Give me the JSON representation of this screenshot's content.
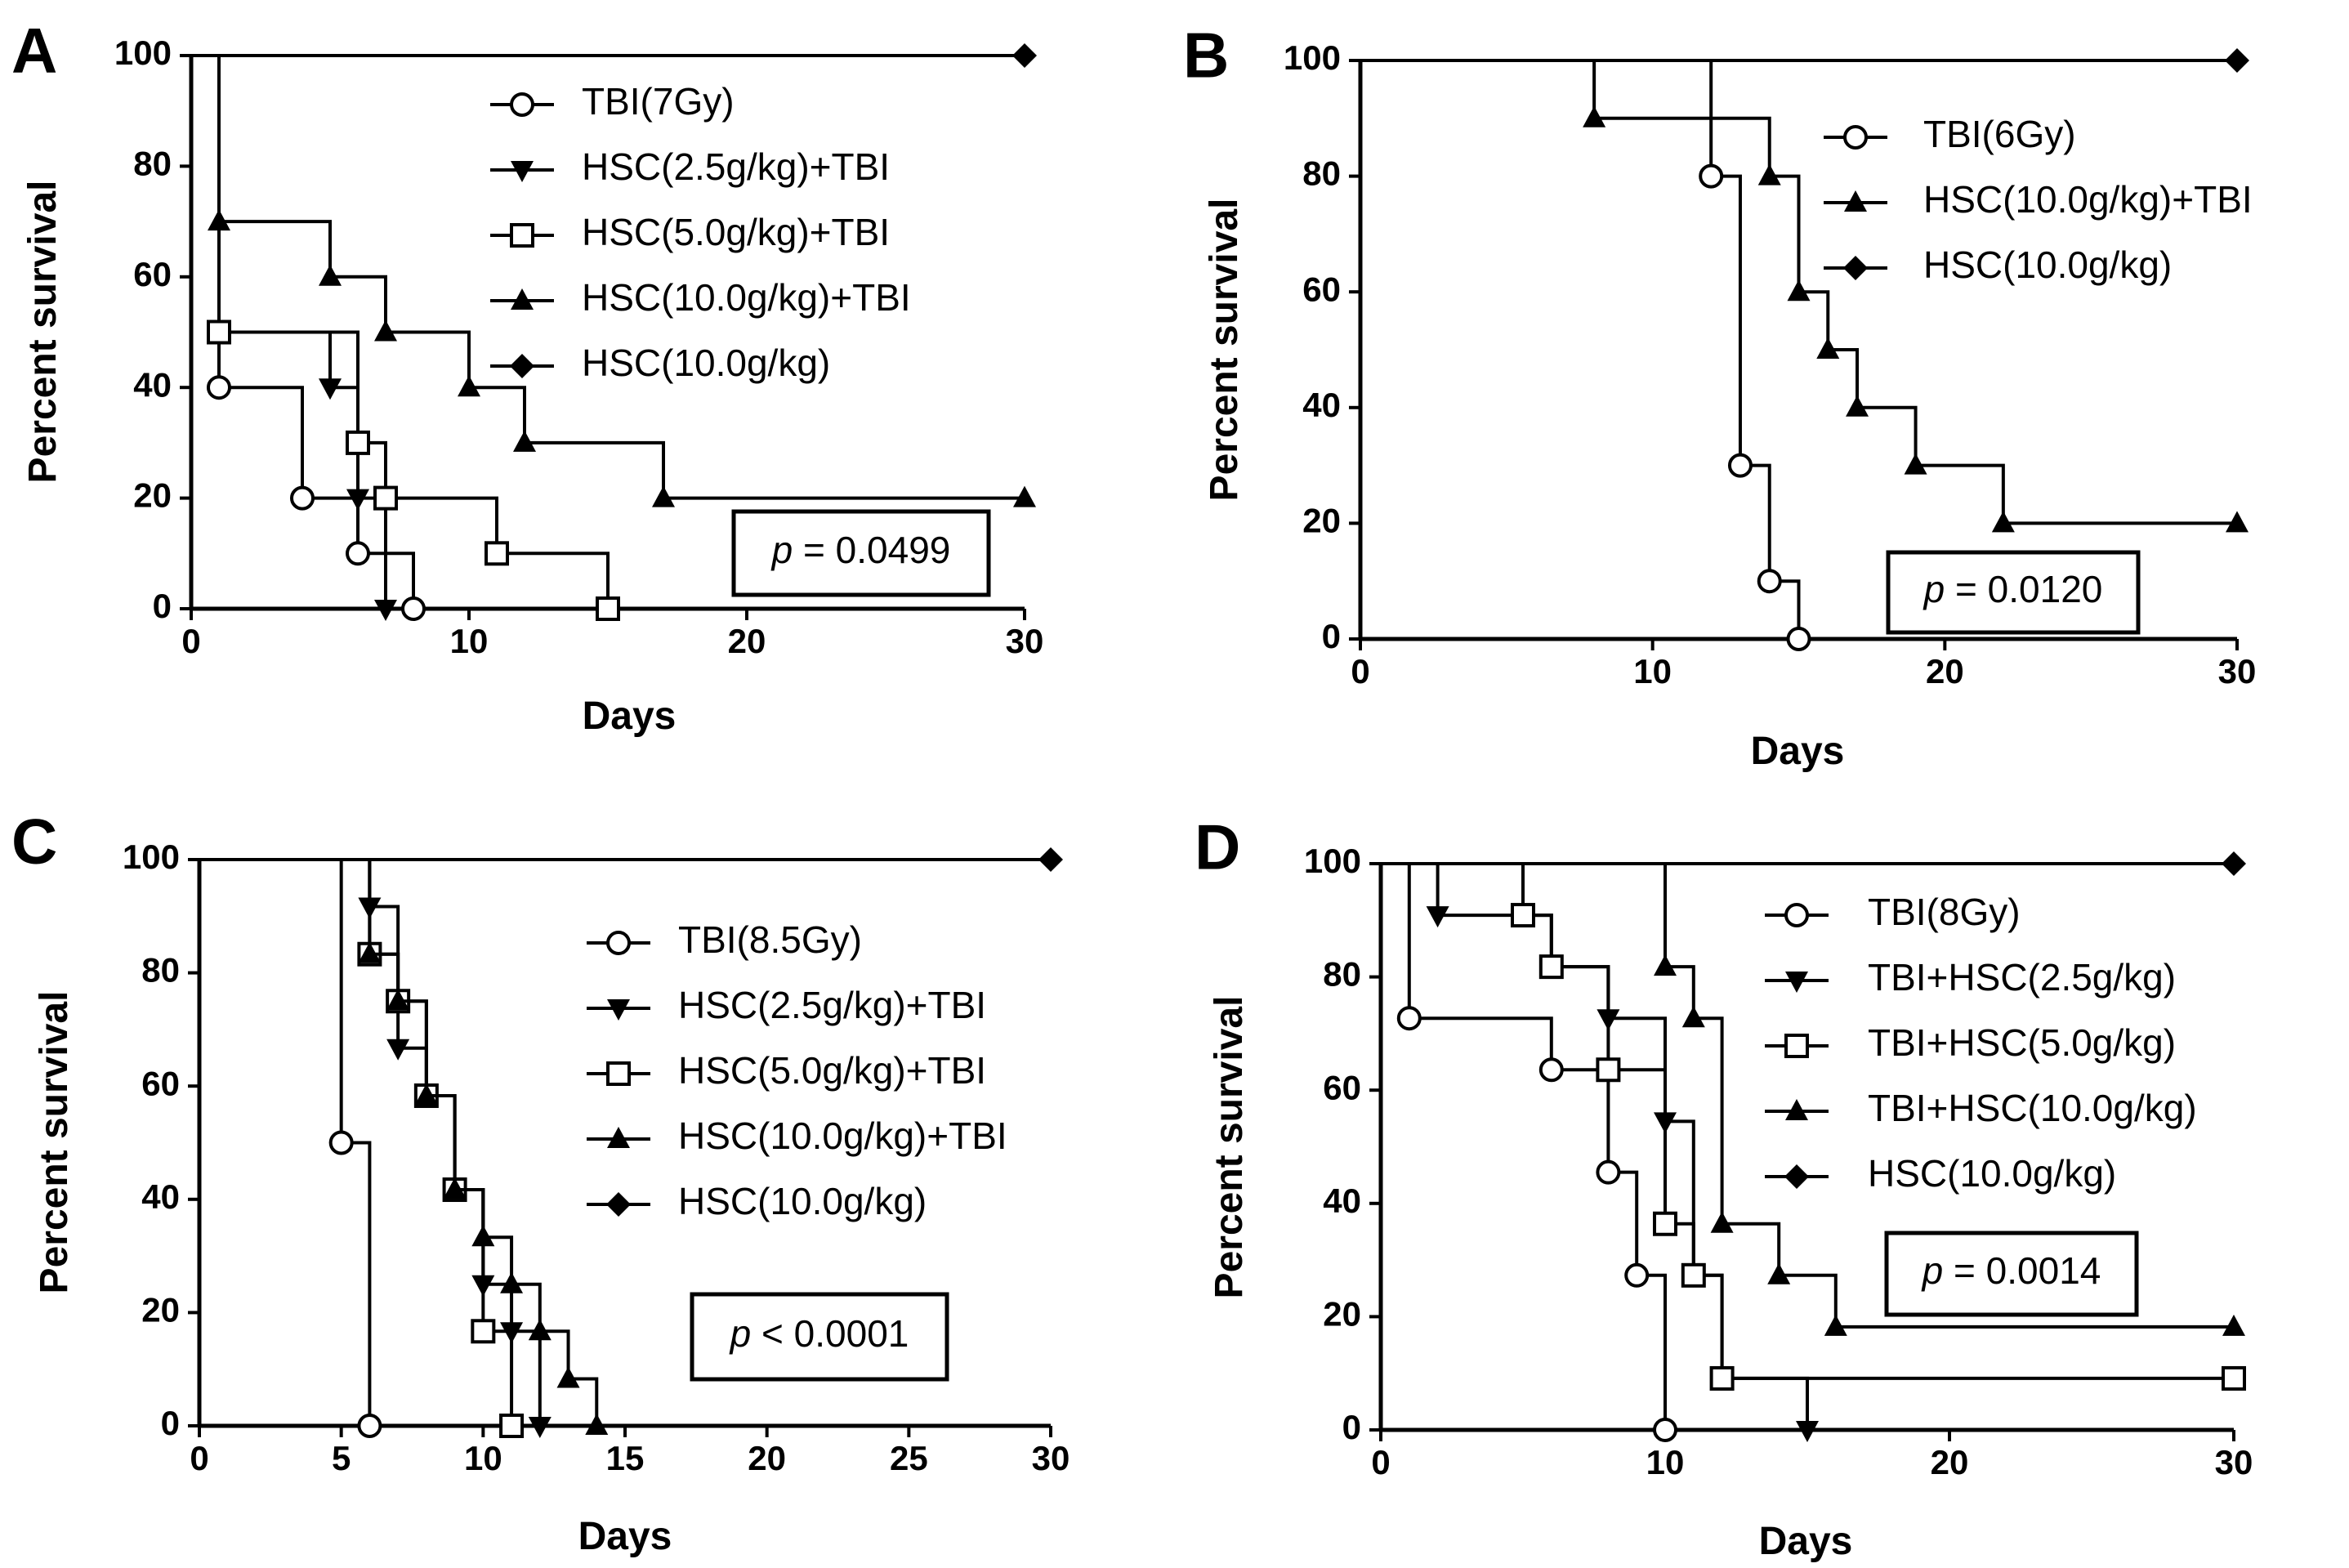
{
  "chart_data": [
    {
      "panel": "A",
      "type": "line",
      "subtype": "kaplan-meier",
      "xlabel": "Days",
      "ylabel": "Percent survival",
      "xlim": [
        0,
        30
      ],
      "ylim": [
        0,
        100
      ],
      "xticks": [
        0,
        10,
        20,
        30
      ],
      "yticks": [
        0,
        20,
        40,
        60,
        80,
        100
      ],
      "legend_position": "top-center",
      "p_value": {
        "prefix": "p",
        "text": " = 0.0499"
      },
      "series": [
        {
          "name": "TBI(7Gy)",
          "marker": "circle-open",
          "steps": [
            [
              0,
              100
            ],
            [
              1,
              40
            ],
            [
              4,
              20
            ],
            [
              6,
              10
            ],
            [
              8,
              0
            ]
          ]
        },
        {
          "name": "HSC(2.5g/kg)+TBI",
          "marker": "triangle-down",
          "steps": [
            [
              0,
              100
            ],
            [
              1,
              50
            ],
            [
              5,
              40
            ],
            [
              6,
              20
            ],
            [
              7,
              0
            ]
          ]
        },
        {
          "name": "HSC(5.0g/kg)+TBI",
          "marker": "square-open",
          "steps": [
            [
              0,
              100
            ],
            [
              1,
              50
            ],
            [
              6,
              30
            ],
            [
              7,
              20
            ],
            [
              11,
              10
            ],
            [
              15,
              0
            ]
          ]
        },
        {
          "name": "HSC(10.0g/kg)+TBI",
          "marker": "triangle-up",
          "steps": [
            [
              0,
              100
            ],
            [
              1,
              70
            ],
            [
              5,
              60
            ],
            [
              7,
              50
            ],
            [
              10,
              40
            ],
            [
              12,
              30
            ],
            [
              17,
              20
            ]
          ],
          "end": [
            30,
            20
          ]
        },
        {
          "name": "HSC(10.0g/kg)",
          "marker": "diamond",
          "steps": [
            [
              0,
              100
            ]
          ],
          "end": [
            30,
            100
          ]
        }
      ]
    },
    {
      "panel": "B",
      "type": "line",
      "subtype": "kaplan-meier",
      "xlabel": "Days",
      "ylabel": "Percent survival",
      "xlim": [
        0,
        30
      ],
      "ylim": [
        0,
        100
      ],
      "xticks": [
        0,
        10,
        20,
        30
      ],
      "yticks": [
        0,
        20,
        40,
        60,
        80,
        100
      ],
      "legend_position": "top-right",
      "p_value": {
        "prefix": "p",
        "text": " = 0.0120"
      },
      "series": [
        {
          "name": "TBI(6Gy)",
          "marker": "circle-open",
          "steps": [
            [
              0,
              100
            ],
            [
              12,
              80
            ],
            [
              13,
              30
            ],
            [
              14,
              10
            ],
            [
              15,
              0
            ]
          ]
        },
        {
          "name": "HSC(10.0g/kg)+TBI",
          "marker": "triangle-up",
          "steps": [
            [
              0,
              100
            ],
            [
              8,
              90
            ],
            [
              14,
              80
            ],
            [
              15,
              60
            ],
            [
              16,
              50
            ],
            [
              17,
              40
            ],
            [
              19,
              30
            ],
            [
              22,
              20
            ]
          ],
          "end": [
            30,
            20
          ]
        },
        {
          "name": "HSC(10.0g/kg)",
          "marker": "diamond",
          "steps": [
            [
              0,
              100
            ]
          ],
          "end": [
            30,
            100
          ]
        }
      ]
    },
    {
      "panel": "C",
      "type": "line",
      "subtype": "kaplan-meier",
      "xlabel": "Days",
      "ylabel": "Percent survival",
      "xlim": [
        0,
        30
      ],
      "ylim": [
        0,
        100
      ],
      "xticks": [
        0,
        5,
        10,
        15,
        20,
        25,
        30
      ],
      "yticks": [
        0,
        20,
        40,
        60,
        80,
        100
      ],
      "legend_position": "top-right",
      "p_value": {
        "prefix": "p",
        "text": " < 0.0001"
      },
      "series": [
        {
          "name": "TBI(8.5Gy)",
          "marker": "circle-open",
          "steps": [
            [
              0,
              100
            ],
            [
              5,
              50
            ],
            [
              6,
              0
            ]
          ]
        },
        {
          "name": "HSC(2.5g/kg)+TBI",
          "marker": "triangle-down",
          "steps": [
            [
              0,
              100
            ],
            [
              6,
              91.7
            ],
            [
              7,
              66.7
            ],
            [
              8,
              58.3
            ],
            [
              9,
              41.7
            ],
            [
              10,
              25
            ],
            [
              11,
              16.7
            ],
            [
              12,
              0
            ]
          ]
        },
        {
          "name": "HSC(5.0g/kg)+TBI",
          "marker": "square-open",
          "steps": [
            [
              0,
              100
            ],
            [
              6,
              83.3
            ],
            [
              7,
              75
            ],
            [
              8,
              58.3
            ],
            [
              9,
              41.7
            ],
            [
              10,
              16.7
            ],
            [
              11,
              0
            ]
          ]
        },
        {
          "name": "HSC(10.0g/kg)+TBI",
          "marker": "triangle-up",
          "steps": [
            [
              0,
              100
            ],
            [
              6,
              83.3
            ],
            [
              7,
              75
            ],
            [
              8,
              58.3
            ],
            [
              9,
              41.7
            ],
            [
              10,
              33.3
            ],
            [
              11,
              25
            ],
            [
              12,
              16.7
            ],
            [
              13,
              8.3
            ],
            [
              14,
              0
            ]
          ]
        },
        {
          "name": "HSC(10.0g/kg)",
          "marker": "diamond",
          "steps": [
            [
              0,
              100
            ]
          ],
          "end": [
            30,
            100
          ]
        }
      ]
    },
    {
      "panel": "D",
      "type": "line",
      "subtype": "kaplan-meier",
      "xlabel": "Days",
      "ylabel": "Percent survival",
      "xlim": [
        0,
        30
      ],
      "ylim": [
        0,
        100
      ],
      "xticks": [
        0,
        10,
        20,
        30
      ],
      "yticks": [
        0,
        20,
        40,
        60,
        80,
        100
      ],
      "legend_position": "top-right",
      "p_value": {
        "prefix": "p",
        "text": " = 0.0014"
      },
      "series": [
        {
          "name": "TBI(8Gy)",
          "marker": "circle-open",
          "steps": [
            [
              0,
              100
            ],
            [
              1,
              72.7
            ],
            [
              6,
              63.6
            ],
            [
              8,
              45.5
            ],
            [
              9,
              27.3
            ],
            [
              10,
              0
            ]
          ]
        },
        {
          "name": "TBI+HSC(2.5g/kg)",
          "marker": "triangle-down",
          "steps": [
            [
              0,
              100
            ],
            [
              2,
              90.9
            ],
            [
              6,
              81.8
            ],
            [
              8,
              72.7
            ],
            [
              10,
              54.5
            ],
            [
              11,
              27.3
            ],
            [
              12,
              9.1
            ],
            [
              15,
              0
            ]
          ]
        },
        {
          "name": "TBI+HSC(5.0g/kg)",
          "marker": "square-open",
          "steps": [
            [
              0,
              100
            ],
            [
              5,
              90.9
            ],
            [
              6,
              81.8
            ],
            [
              8,
              63.6
            ],
            [
              10,
              36.4
            ],
            [
              11,
              27.3
            ],
            [
              12,
              9.1
            ]
          ],
          "end": [
            30,
            9.1
          ]
        },
        {
          "name": "TBI+HSC(10.0g/kg)",
          "marker": "triangle-up",
          "steps": [
            [
              0,
              100
            ],
            [
              10,
              81.8
            ],
            [
              11,
              72.7
            ],
            [
              12,
              36.4
            ],
            [
              14,
              27.3
            ],
            [
              16,
              18.2
            ]
          ],
          "end": [
            30,
            18.2
          ]
        },
        {
          "name": "HSC(10.0g/kg)",
          "marker": "diamond",
          "steps": [
            [
              0,
              100
            ]
          ],
          "end": [
            30,
            100
          ]
        }
      ]
    }
  ]
}
